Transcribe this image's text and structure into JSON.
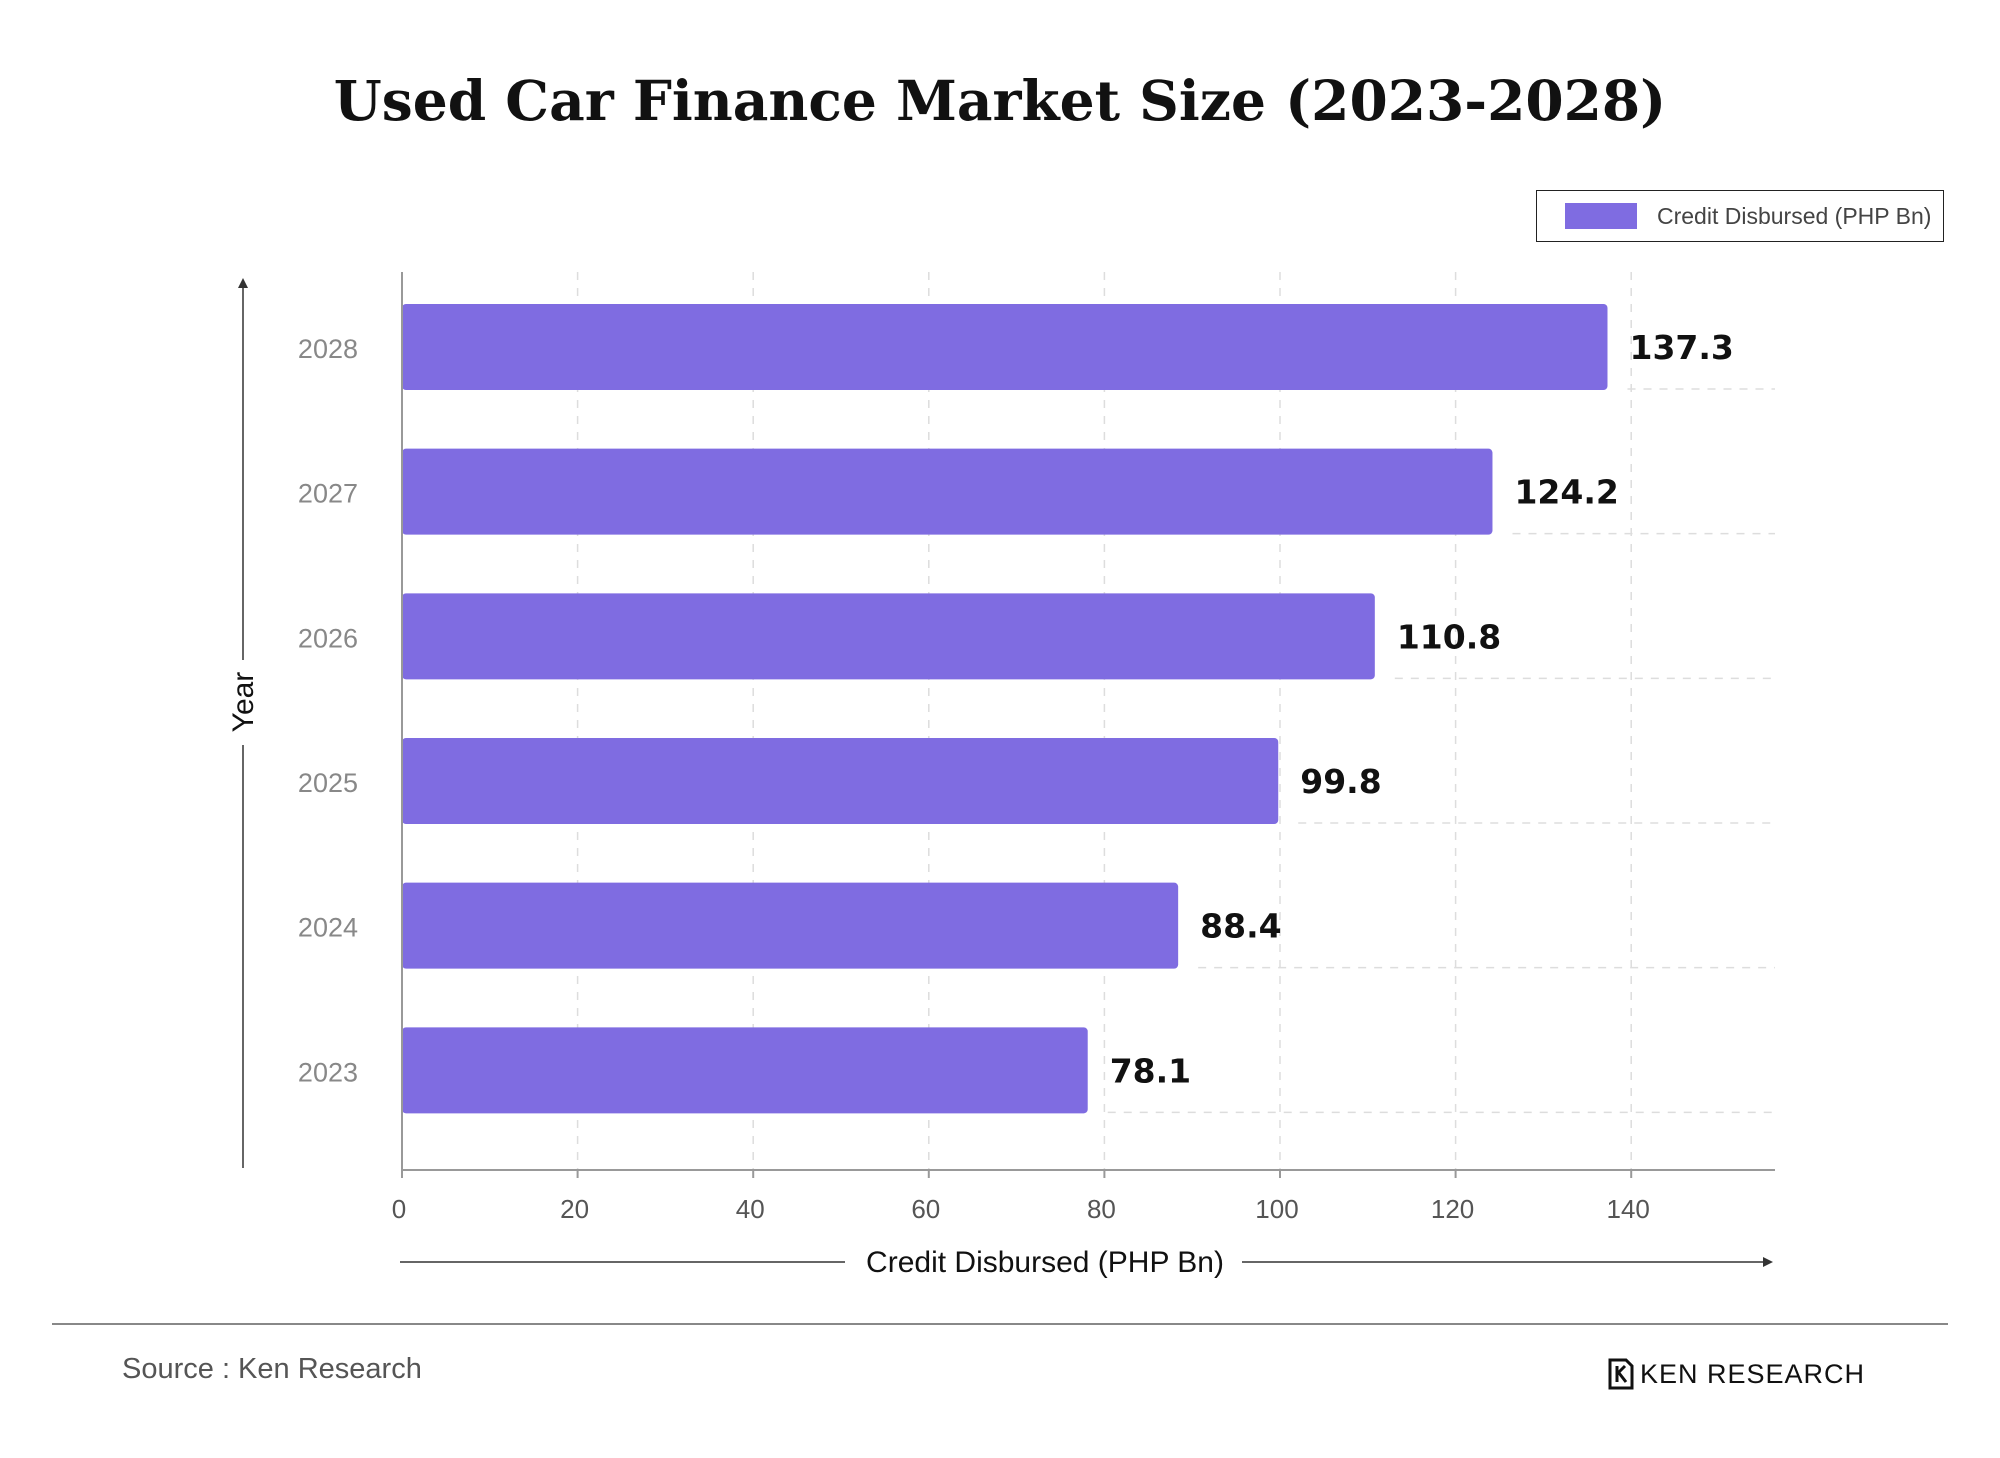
{
  "title": "Used Car Finance Market Size (2023-2028)",
  "legend": {
    "label": "Credit Disbursed (PHP Bn)",
    "color": "#7F6CE1"
  },
  "chart_data": {
    "type": "bar",
    "orientation": "horizontal",
    "categories": [
      "2028",
      "2027",
      "2026",
      "2025",
      "2024",
      "2023"
    ],
    "series": [
      {
        "name": "Credit Disbursed (PHP Bn)",
        "values": [
          137.3,
          124.2,
          110.8,
          99.8,
          88.4,
          78.1
        ]
      }
    ],
    "data_labels": [
      "137.3",
      "124.2",
      "110.8",
      "99.8",
      "88.4",
      "78.1"
    ],
    "xlabel": "Credit Disbursed (PHP Bn)",
    "ylabel": "Year",
    "xlim": [
      0,
      150
    ],
    "xticks": [
      0,
      20,
      40,
      60,
      80,
      100,
      120,
      140
    ],
    "grid": true,
    "legend_position": "top-right",
    "bar_color": "#7F6CE1"
  },
  "footer": {
    "source": "Source : Ken Research",
    "brand": "KEN RESEARCH"
  }
}
